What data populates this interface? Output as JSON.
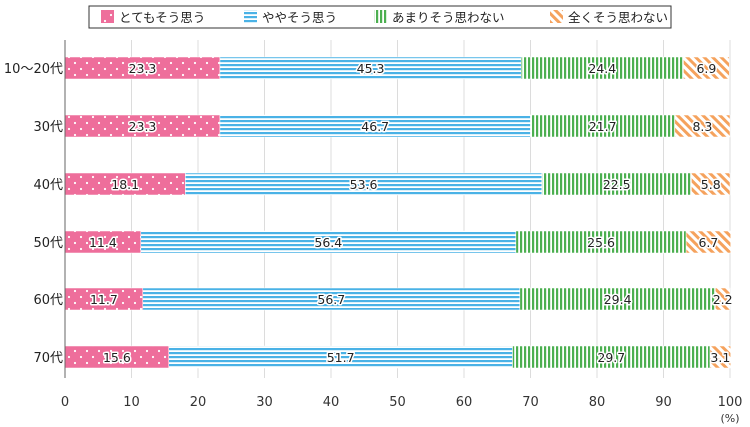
{
  "chart_data": {
    "type": "bar",
    "orientation": "horizontal",
    "stacked": true,
    "categories": [
      "10〜20代",
      "30代",
      "40代",
      "50代",
      "60代",
      "70代"
    ],
    "series": [
      {
        "name": "とてもそう思う",
        "color": "#ee6e9b",
        "values": [
          23.3,
          23.3,
          18.1,
          11.4,
          11.7,
          15.6
        ]
      },
      {
        "name": "ややそう思う",
        "color": "#4ab2e6",
        "values": [
          45.3,
          46.7,
          53.6,
          56.4,
          56.7,
          51.7
        ]
      },
      {
        "name": "あまりそう思わない",
        "color": "#4caf50",
        "values": [
          24.4,
          21.7,
          22.5,
          25.6,
          29.4,
          29.7
        ]
      },
      {
        "name": "全くそう思わない",
        "color": "#f5a25d",
        "values": [
          6.9,
          8.3,
          5.8,
          6.7,
          2.2,
          3.1
        ]
      }
    ],
    "x_ticks": [
      "0",
      "10",
      "20",
      "30",
      "40",
      "50",
      "60",
      "70",
      "80",
      "90",
      "100"
    ],
    "xlim": [
      0,
      100
    ],
    "x_unit": "(%)",
    "legend_position": "top",
    "grid": true
  }
}
